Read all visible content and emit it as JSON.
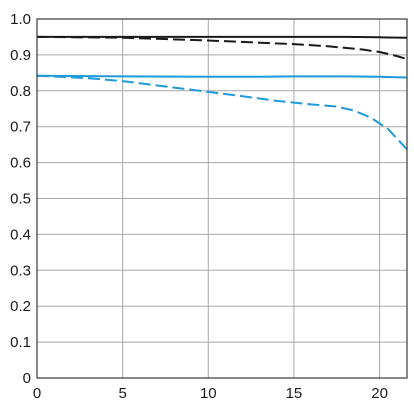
{
  "chart_data": {
    "type": "line",
    "title": "",
    "xlabel": "",
    "ylabel": "",
    "xlim": [
      0,
      21.6
    ],
    "ylim": [
      0,
      1.0
    ],
    "x_ticks": [
      0,
      5,
      10,
      15,
      20
    ],
    "x_tick_labels": [
      "0",
      "5",
      "10",
      "15",
      "20"
    ],
    "y_ticks": [
      0,
      0.1,
      0.2,
      0.3,
      0.4,
      0.5,
      0.6,
      0.7,
      0.8,
      0.9,
      1.0
    ],
    "y_tick_labels": [
      "0",
      "0.1",
      "0.2",
      "0.3",
      "0.4",
      "0.5",
      "0.6",
      "0.7",
      "0.8",
      "0.9",
      "1.0"
    ],
    "grid": true,
    "series": [
      {
        "color": "#1a1a1a",
        "style": "solid",
        "points": [
          [
            0,
            0.95
          ],
          [
            5,
            0.95
          ],
          [
            10,
            0.95
          ],
          [
            15,
            0.95
          ],
          [
            18,
            0.95
          ],
          [
            20,
            0.949
          ],
          [
            21.6,
            0.948
          ]
        ]
      },
      {
        "color": "#1a1a1a",
        "style": "dashed",
        "points": [
          [
            0,
            0.95
          ],
          [
            5,
            0.948
          ],
          [
            10,
            0.94
          ],
          [
            13,
            0.934
          ],
          [
            15,
            0.93
          ],
          [
            17,
            0.924
          ],
          [
            19,
            0.915
          ],
          [
            20,
            0.908
          ],
          [
            21,
            0.897
          ],
          [
            21.6,
            0.888
          ]
        ]
      },
      {
        "color": "#1e9ad8",
        "style": "solid",
        "points": [
          [
            0,
            0.842
          ],
          [
            5,
            0.84
          ],
          [
            10,
            0.839
          ],
          [
            13,
            0.839
          ],
          [
            15,
            0.84
          ],
          [
            18,
            0.84
          ],
          [
            20,
            0.839
          ],
          [
            21.6,
            0.837
          ]
        ]
      },
      {
        "color": "#1e9ad8",
        "style": "dashed",
        "points": [
          [
            0,
            0.842
          ],
          [
            3,
            0.835
          ],
          [
            5,
            0.827
          ],
          [
            8,
            0.809
          ],
          [
            10,
            0.797
          ],
          [
            12,
            0.785
          ],
          [
            14,
            0.772
          ],
          [
            16,
            0.762
          ],
          [
            17.5,
            0.756
          ],
          [
            18.5,
            0.745
          ],
          [
            19.5,
            0.725
          ],
          [
            20.5,
            0.693
          ],
          [
            21.6,
            0.637
          ]
        ]
      }
    ]
  }
}
